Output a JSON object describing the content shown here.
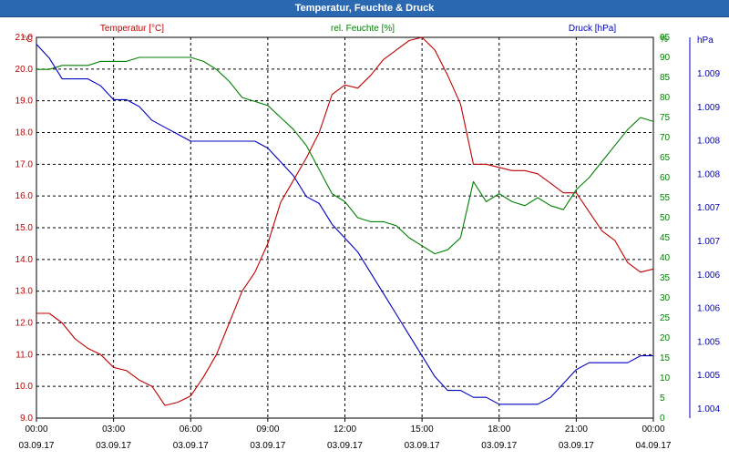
{
  "window": {
    "title": "Temperatur, Feuchte & Druck"
  },
  "chart_data": {
    "type": "line",
    "title": "Temperatur, Feuchte & Druck",
    "grid": true,
    "colors": {
      "temperature": "#c00000",
      "humidity": "#008000",
      "pressure": "#0000c0"
    },
    "x_ticks": [
      {
        "time": "00:00",
        "date": "03.09.17",
        "hours": 0
      },
      {
        "time": "03:00",
        "date": "03.09.17",
        "hours": 3
      },
      {
        "time": "06:00",
        "date": "03.09.17",
        "hours": 6
      },
      {
        "time": "09:00",
        "date": "03.09.17",
        "hours": 9
      },
      {
        "time": "12:00",
        "date": "03.09.17",
        "hours": 12
      },
      {
        "time": "15:00",
        "date": "03.09.17",
        "hours": 15
      },
      {
        "time": "18:00",
        "date": "03.09.17",
        "hours": 18
      },
      {
        "time": "21:00",
        "date": "03.09.17",
        "hours": 21
      },
      {
        "time": "00:00",
        "date": "04.09.17",
        "hours": 24
      }
    ],
    "axes": {
      "temperature": {
        "label": "Temperatur [°C]",
        "unit": "°C",
        "side": "left",
        "range": [
          9.0,
          21.0
        ],
        "ticks": [
          "9.0",
          "10.0",
          "11.0",
          "12.0",
          "13.0",
          "14.0",
          "15.0",
          "16.0",
          "17.0",
          "18.0",
          "19.0",
          "20.0",
          "21.0"
        ]
      },
      "humidity": {
        "label": "rel. Feuchte [%]",
        "unit": "%",
        "side": "right",
        "range": [
          0,
          95
        ],
        "ticks": [
          "0",
          "5",
          "10",
          "15",
          "20",
          "25",
          "30",
          "35",
          "40",
          "45",
          "50",
          "55",
          "60",
          "65",
          "70",
          "75",
          "80",
          "85",
          "90",
          "95"
        ]
      },
      "pressure": {
        "label": "Druck [hPa]",
        "unit": "hPa",
        "side": "far-right",
        "range": [
          1.004,
          1.0095
        ],
        "ticks": [
          "1.004",
          "1.005",
          "1.005",
          "1.006",
          "1.006",
          "1.007",
          "1.007",
          "1.008",
          "1.008",
          "1.009",
          "1.009"
        ]
      }
    },
    "series": [
      {
        "name": "Temperatur [°C]",
        "key": "temperature",
        "x": [
          0,
          0.5,
          1,
          1.5,
          2,
          2.5,
          3,
          3.5,
          4,
          4.5,
          5,
          5.5,
          6,
          6.5,
          7,
          7.5,
          8,
          8.5,
          9,
          9.5,
          10,
          10.5,
          11,
          11.5,
          12,
          12.5,
          13,
          13.5,
          14,
          14.5,
          15,
          15.5,
          16,
          16.5,
          17,
          17.5,
          18,
          18.5,
          19,
          19.5,
          20,
          20.5,
          21,
          21.5,
          22,
          22.5,
          23,
          23.5,
          24
        ],
        "values": [
          12.3,
          12.3,
          12.0,
          11.5,
          11.2,
          11.0,
          10.6,
          10.5,
          10.2,
          10.0,
          9.4,
          9.5,
          9.7,
          10.3,
          11.0,
          12.0,
          13.0,
          13.6,
          14.5,
          15.8,
          16.5,
          17.2,
          18.0,
          19.2,
          19.5,
          19.4,
          19.8,
          20.3,
          20.6,
          20.9,
          21.0,
          20.6,
          19.8,
          18.9,
          17.0,
          17.0,
          16.9,
          16.8,
          16.8,
          16.7,
          16.4,
          16.1,
          16.1,
          15.5,
          14.9,
          14.6,
          13.9,
          13.6,
          13.7
        ]
      },
      {
        "name": "rel. Feuchte [%]",
        "key": "humidity",
        "x": [
          0,
          0.5,
          1,
          1.5,
          2,
          2.5,
          3,
          3.5,
          4,
          4.5,
          5,
          5.5,
          6,
          6.5,
          7,
          7.5,
          8,
          8.5,
          9,
          9.5,
          10,
          10.5,
          11,
          11.5,
          12,
          12.5,
          13,
          13.5,
          14,
          14.5,
          15,
          15.5,
          16,
          16.5,
          17,
          17.5,
          18,
          18.5,
          19,
          19.5,
          20,
          20.5,
          21,
          21.5,
          22,
          22.5,
          23,
          23.5,
          24
        ],
        "values": [
          87,
          87,
          88,
          88,
          88,
          89,
          89,
          89,
          90,
          90,
          90,
          90,
          90,
          89,
          87,
          84,
          80,
          79,
          78,
          75,
          72,
          68,
          62,
          56,
          54,
          50,
          49,
          49,
          48,
          45,
          43,
          41,
          42,
          45,
          59,
          54,
          56,
          54,
          53,
          55,
          53,
          52,
          57,
          60,
          64,
          68,
          72,
          75,
          74
        ]
      },
      {
        "name": "Druck [hPa]",
        "key": "pressure",
        "x": [
          0,
          0.5,
          1,
          1.5,
          2,
          2.5,
          3,
          3.5,
          4,
          4.5,
          5,
          5.5,
          6,
          6.5,
          7,
          7.5,
          8,
          8.5,
          9,
          9.5,
          10,
          10.5,
          11,
          11.5,
          12,
          12.5,
          13,
          13.5,
          14,
          14.5,
          15,
          15.5,
          16,
          16.5,
          17,
          17.5,
          18,
          18.5,
          19,
          19.5,
          20,
          20.5,
          21,
          21.5,
          22,
          22.5,
          23,
          23.5,
          24
        ],
        "values": [
          1.0094,
          1.0092,
          1.0089,
          1.0089,
          1.0089,
          1.0088,
          1.0086,
          1.0086,
          1.0085,
          1.0083,
          1.0082,
          1.0081,
          1.008,
          1.008,
          1.008,
          1.008,
          1.008,
          1.008,
          1.0079,
          1.0077,
          1.0075,
          1.0072,
          1.0071,
          1.0068,
          1.0066,
          1.0064,
          1.0061,
          1.0058,
          1.0055,
          1.0052,
          1.0049,
          1.0046,
          1.0044,
          1.0044,
          1.0043,
          1.0043,
          1.0042,
          1.0042,
          1.0042,
          1.0042,
          1.0043,
          1.0045,
          1.0047,
          1.0048,
          1.0048,
          1.0048,
          1.0048,
          1.0049,
          1.0049
        ]
      }
    ]
  }
}
